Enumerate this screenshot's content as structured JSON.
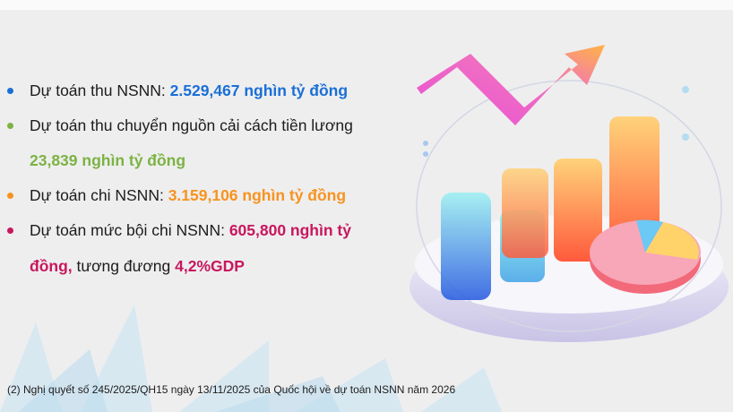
{
  "items": [
    {
      "label": "Dự toán thu NSNN: ",
      "value": "2.529,467  nghìn tỷ đồng",
      "color": "#1a6fd6"
    },
    {
      "label": "Dự toán thu chuyển nguồn cải cách tiền lương",
      "value": "23,839 nghìn tỷ đồng",
      "color": "#7cb342"
    },
    {
      "label": "Dự toán chi NSNN: ",
      "value": "3.159,106 nghìn tỷ đồng",
      "color": "#f7931e"
    },
    {
      "label": "Dự toán mức bội chi NSNN: ",
      "value": "605,800 nghìn tỷ",
      "value2": "đồng,",
      "mid": " tương đương ",
      "value3": "4,2%GDP",
      "color": "#c8175d"
    }
  ],
  "footnote": "(2) Nghị quyết số 245/2025/QH15 ngày 13/11/2025 của Quốc hội về dự toán NSNN năm 2026",
  "illustration": {
    "icon": "3d-bar-chart-with-rising-arrow-and-pie-icon"
  }
}
